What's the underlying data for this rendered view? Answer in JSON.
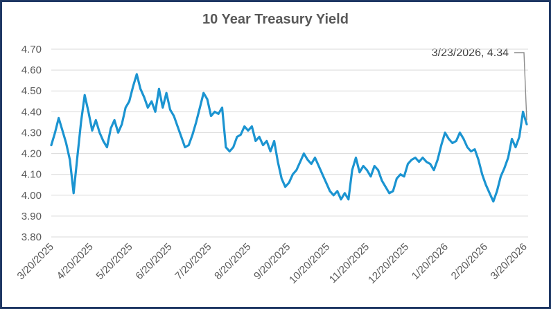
{
  "window": {
    "background_color": "#FFFFFF",
    "border_color": "#1F3864"
  },
  "chart_data": {
    "type": "line",
    "title": "10 Year Treasury Yield",
    "xlabel": "",
    "ylabel": "",
    "ylim": [
      3.8,
      4.7
    ],
    "grid": "horizontal",
    "legend": "none",
    "y_ticks": [
      3.8,
      3.9,
      4.0,
      4.1,
      4.2,
      4.3,
      4.4,
      4.5,
      4.6,
      4.7
    ],
    "y_tick_labels": [
      "3.80",
      "3.90",
      "4.00",
      "4.10",
      "4.20",
      "4.30",
      "4.40",
      "4.50",
      "4.60",
      "4.70"
    ],
    "x_tick_labels": [
      "3/20/2025",
      "4/20/2025",
      "5/20/2025",
      "6/20/2025",
      "7/20/2025",
      "8/20/2025",
      "9/20/2025",
      "10/20/2025",
      "11/20/2025",
      "12/20/2025",
      "1/20/2026",
      "2/20/2026",
      "3/20/2026"
    ],
    "x_range": [
      "3/20/2025",
      "3/23/2026"
    ],
    "annotation": {
      "label": "3/23/2026,  4.34",
      "date": "3/23/2026",
      "value": 4.34
    },
    "series": [
      {
        "name": "10 Year Treasury Yield",
        "color": "#1B94D1",
        "values": [
          4.24,
          4.3,
          4.37,
          4.31,
          4.25,
          4.17,
          4.01,
          4.18,
          4.35,
          4.48,
          4.4,
          4.31,
          4.36,
          4.3,
          4.26,
          4.23,
          4.32,
          4.36,
          4.3,
          4.34,
          4.42,
          4.45,
          4.52,
          4.58,
          4.51,
          4.47,
          4.42,
          4.45,
          4.4,
          4.51,
          4.42,
          4.49,
          4.41,
          4.38,
          4.33,
          4.28,
          4.23,
          4.24,
          4.29,
          4.35,
          4.42,
          4.49,
          4.46,
          4.38,
          4.4,
          4.39,
          4.42,
          4.23,
          4.21,
          4.23,
          4.28,
          4.29,
          4.33,
          4.31,
          4.33,
          4.26,
          4.28,
          4.24,
          4.26,
          4.21,
          4.26,
          4.16,
          4.08,
          4.04,
          4.06,
          4.1,
          4.12,
          4.16,
          4.2,
          4.17,
          4.15,
          4.18,
          4.14,
          4.1,
          4.06,
          4.02,
          4.0,
          4.02,
          3.98,
          4.01,
          3.98,
          4.12,
          4.18,
          4.11,
          4.14,
          4.12,
          4.09,
          4.14,
          4.12,
          4.07,
          4.04,
          4.01,
          4.02,
          4.08,
          4.1,
          4.09,
          4.15,
          4.17,
          4.18,
          4.16,
          4.18,
          4.16,
          4.15,
          4.12,
          4.17,
          4.24,
          4.3,
          4.27,
          4.25,
          4.26,
          4.3,
          4.27,
          4.23,
          4.21,
          4.22,
          4.17,
          4.1,
          4.05,
          4.01,
          3.97,
          4.02,
          4.09,
          4.13,
          4.18,
          4.27,
          4.23,
          4.28,
          4.4,
          4.34
        ]
      }
    ],
    "colors": {
      "title": "#595959",
      "axis_labels": "#595959",
      "gridline": "#D9D9D9",
      "annotation_text": "#404040",
      "leader_line": "#8C8C8C"
    }
  }
}
